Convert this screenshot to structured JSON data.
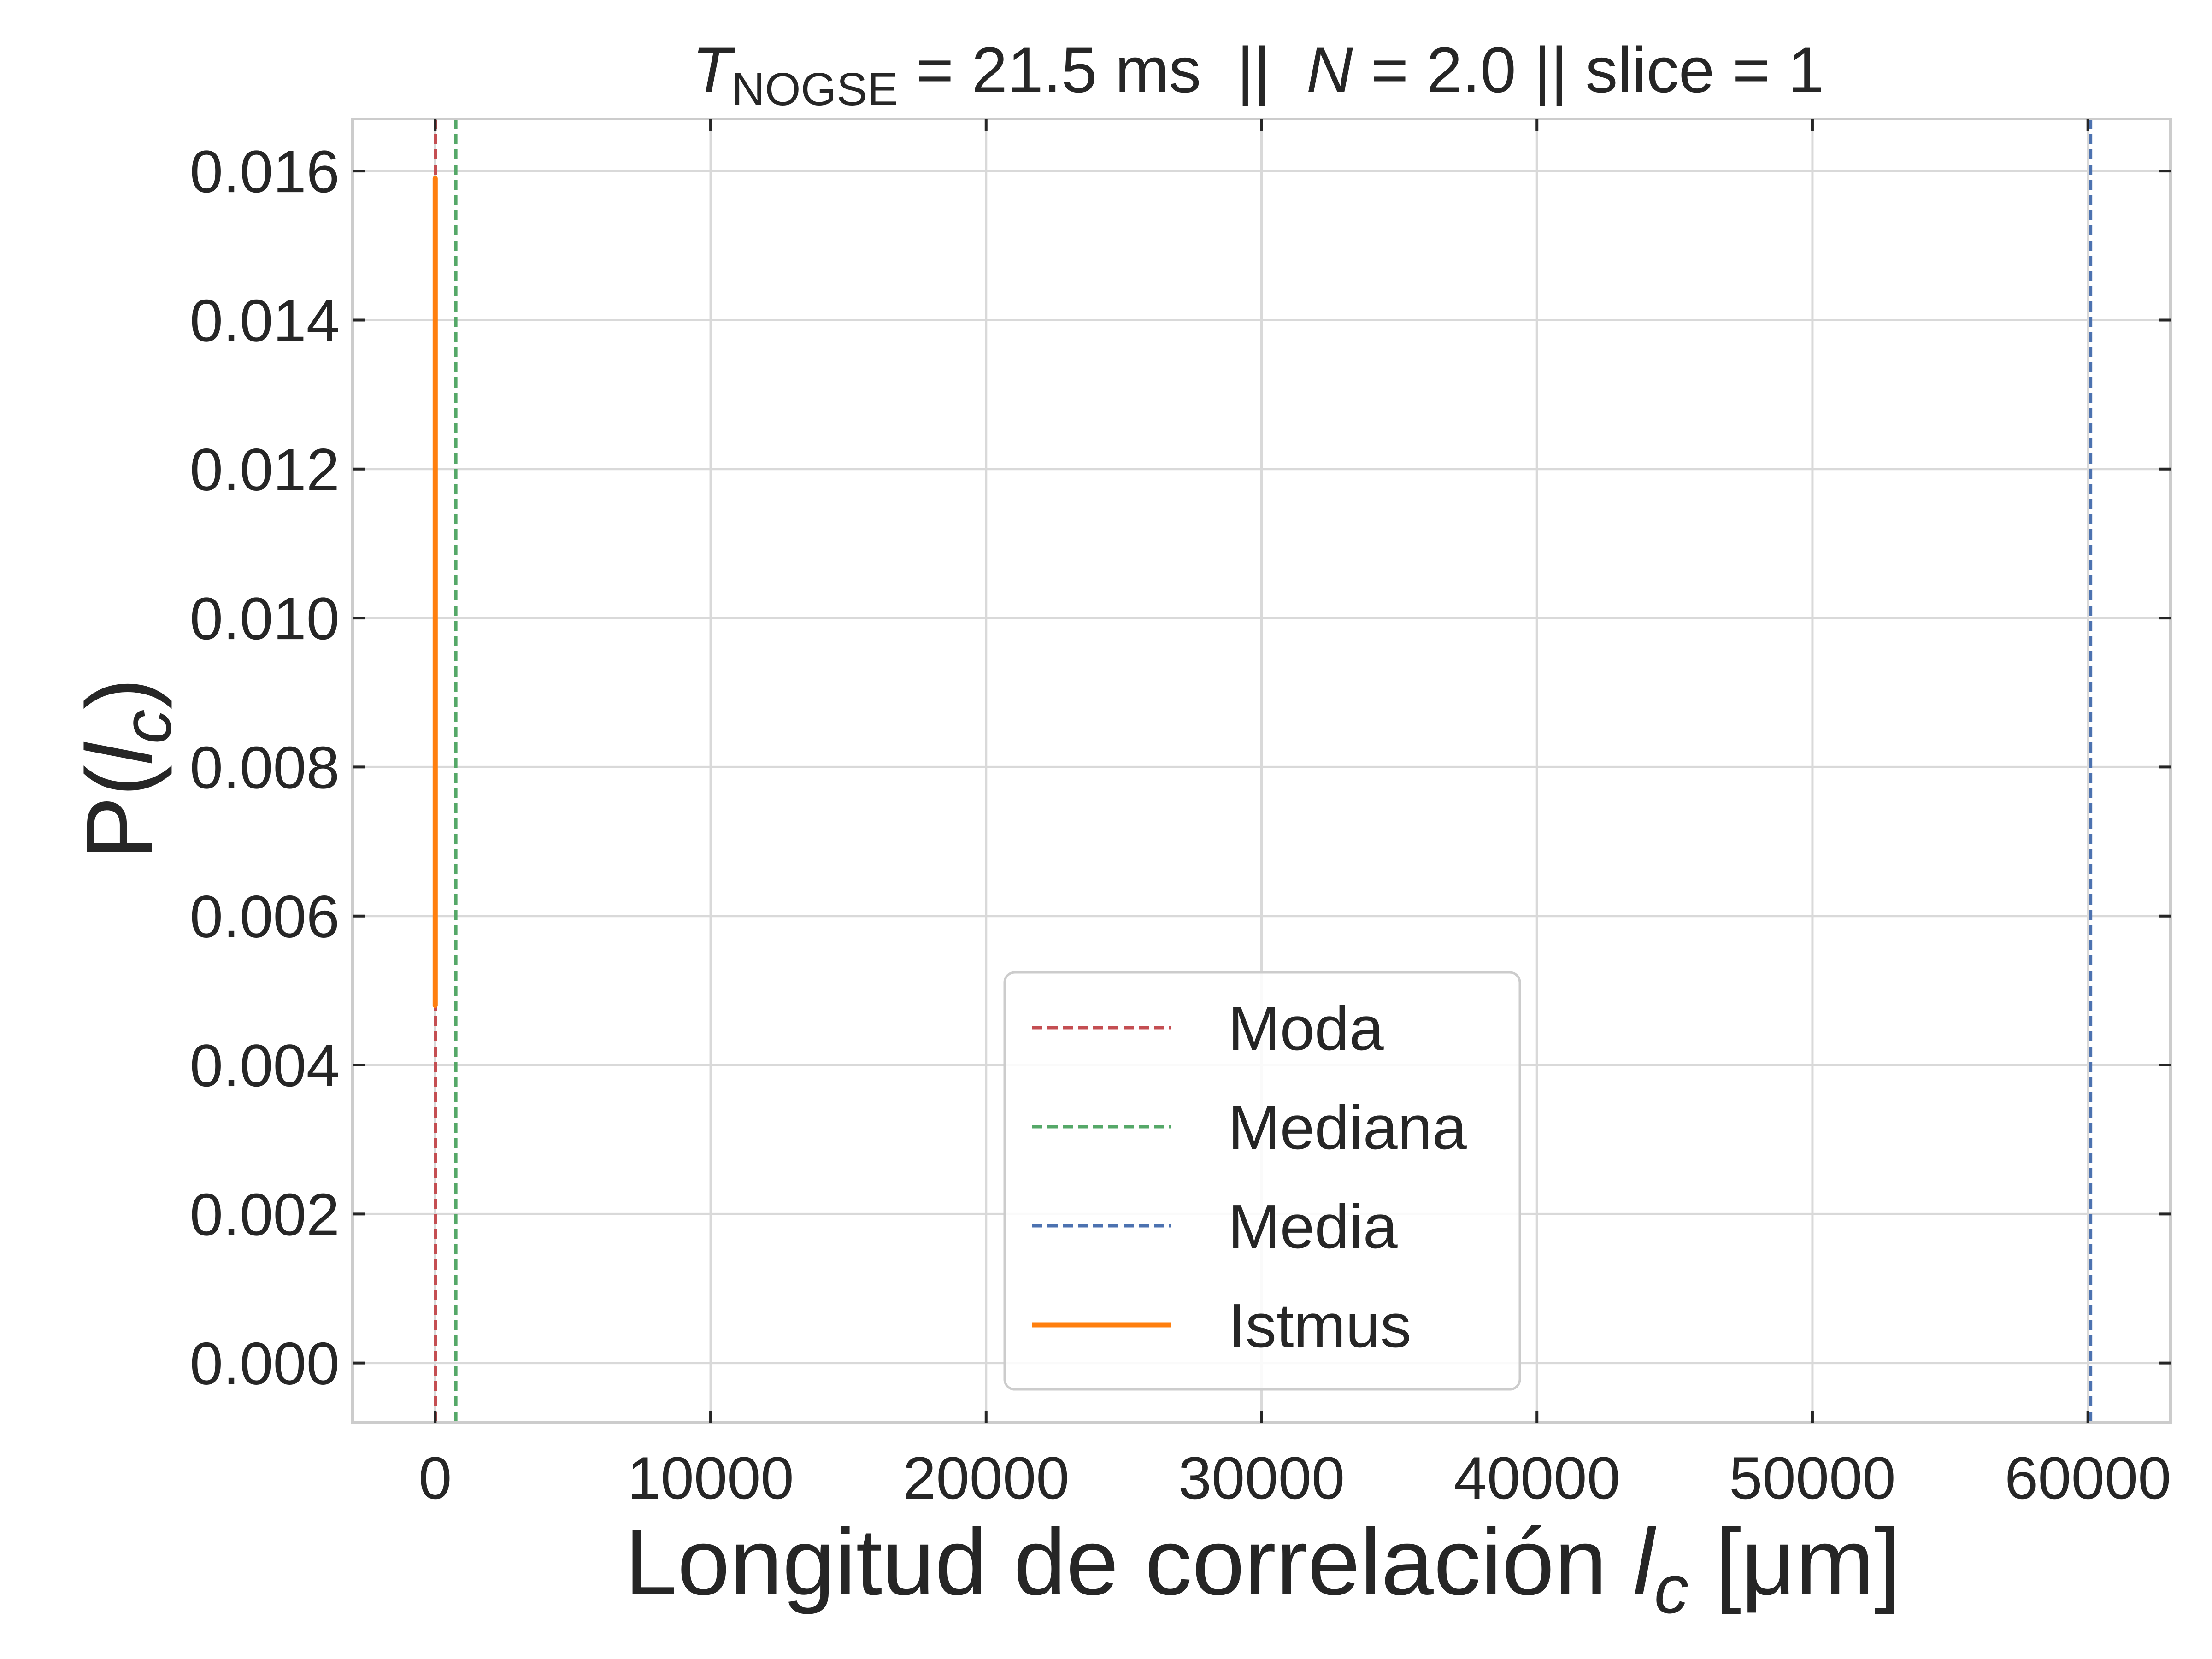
{
  "chart_data": {
    "type": "line",
    "title": {
      "t_symbol": "T",
      "t_subscript": "NOGSE",
      "t_value": " = 21.5 ms  ||  ",
      "n_symbol": "N",
      "n_value": " = 2.0 || slice = 1"
    },
    "xlabel": {
      "prefix": "Longitud de correlación ",
      "symbol": "l",
      "subscript": "c",
      "suffix": " [μm]"
    },
    "ylabel": {
      "prefix": "P(",
      "symbol": "l",
      "subscript": "c",
      "suffix": ")"
    },
    "xlim": [
      -3000,
      63000
    ],
    "ylim": [
      -0.0008,
      0.0167
    ],
    "xticks": [
      0,
      10000,
      20000,
      30000,
      40000,
      50000,
      60000
    ],
    "xtick_labels": [
      "0",
      "10000",
      "20000",
      "30000",
      "40000",
      "50000",
      "60000"
    ],
    "yticks": [
      0,
      0.002,
      0.004,
      0.006,
      0.008,
      0.01,
      0.012,
      0.014,
      0.016
    ],
    "ytick_labels": [
      "0.000",
      "0.002",
      "0.004",
      "0.006",
      "0.008",
      "0.010",
      "0.012",
      "0.014",
      "0.016"
    ],
    "grid": true,
    "legend_position": "lower-center",
    "vlines": [
      {
        "name": "Moda",
        "x": 5,
        "color": "#c44e52",
        "style": "dashed"
      },
      {
        "name": "Mediana",
        "x": 750,
        "color": "#55a868",
        "style": "dashed"
      },
      {
        "name": "Media",
        "x": 60100,
        "color": "#4c72b0",
        "style": "dashed"
      }
    ],
    "series": [
      {
        "name": "Istmus",
        "color": "#ff7f0e",
        "style": "solid",
        "x": [
          0,
          0,
          0,
          0,
          0,
          0
        ],
        "y": [
          0.0048,
          0.007,
          0.009,
          0.012,
          0.0145,
          0.0159
        ]
      }
    ]
  }
}
